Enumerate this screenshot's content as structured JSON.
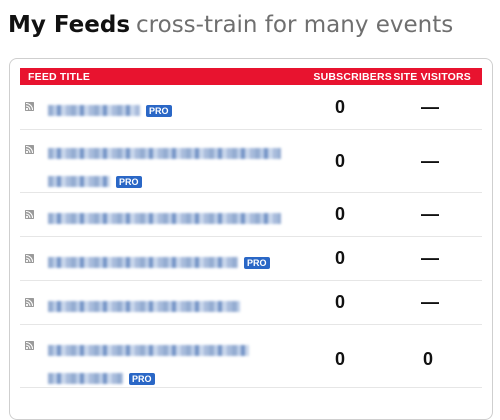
{
  "heading": {
    "title": "My Feeds",
    "subtitle": "cross-train for many events"
  },
  "table": {
    "columns": {
      "title": "FEED TITLE",
      "subscribers": "SUBSCRIBERS",
      "site_visitors": "SITE VISITORS"
    },
    "rows": [
      {
        "pro": "PRO",
        "subscribers": "0",
        "site_visitors": "—"
      },
      {
        "pro": "PRO",
        "subscribers": "0",
        "site_visitors": "—"
      },
      {
        "subscribers": "0",
        "site_visitors": "—"
      },
      {
        "pro": "PRO",
        "subscribers": "0",
        "site_visitors": "—"
      },
      {
        "subscribers": "0",
        "site_visitors": "—"
      },
      {
        "pro": "PRO",
        "subscribers": "0",
        "site_visitors": "0"
      }
    ]
  },
  "colors": {
    "header_bg": "#e8132f",
    "pro_badge": "#2a67c6"
  },
  "icons": {
    "feed": "rss-feed-icon"
  }
}
